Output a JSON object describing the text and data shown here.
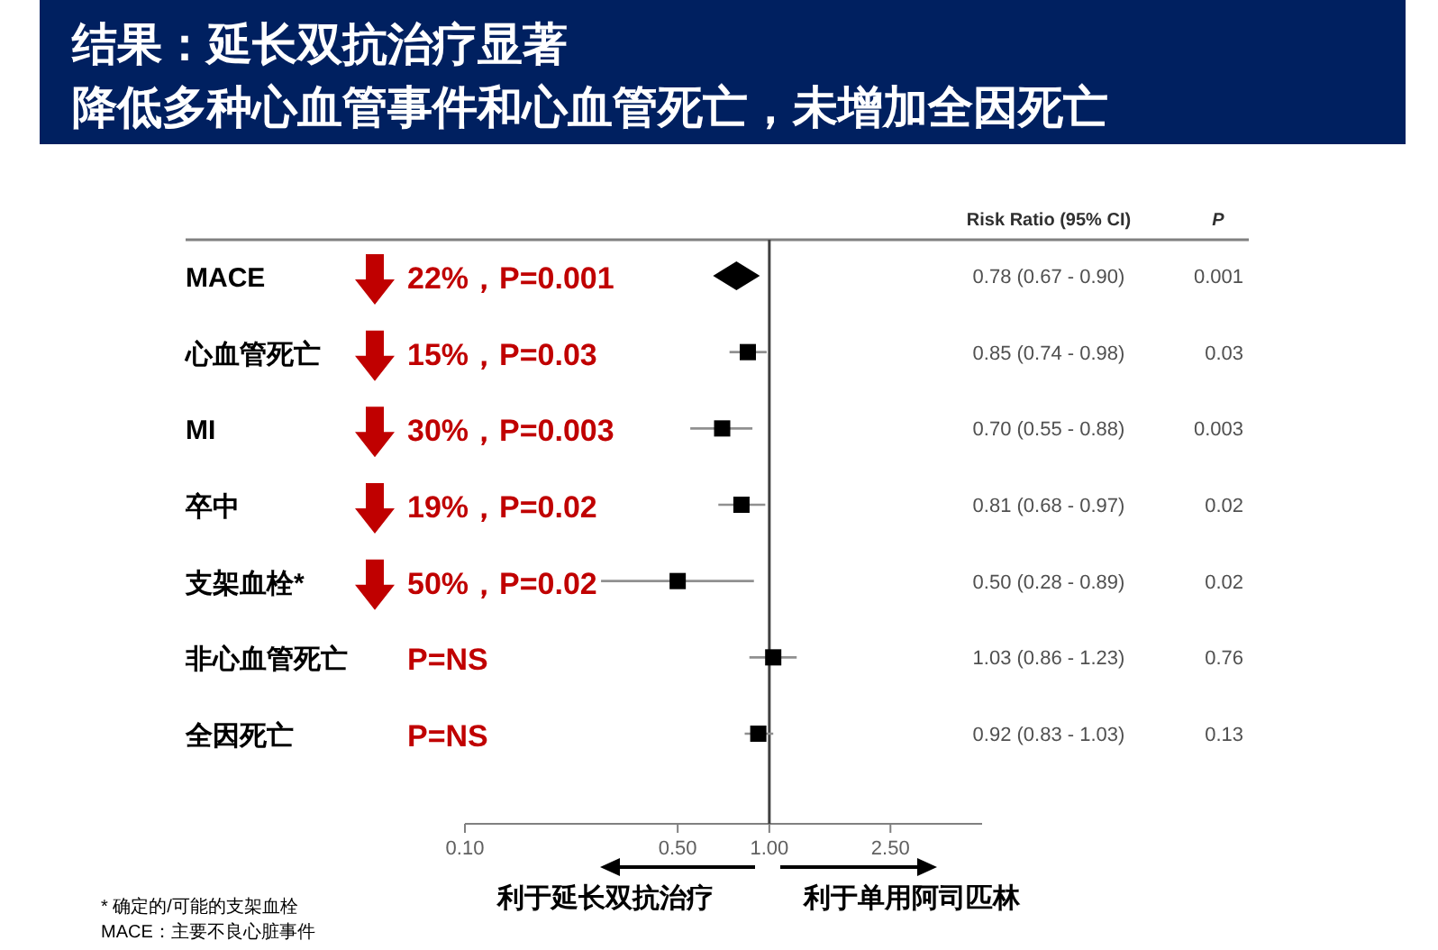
{
  "chart_data": {
    "type": "scatter",
    "orientation": "horizontal",
    "title": "结果：延长双抗治疗显著",
    "subtitle": "降低多种心血管事件和心血管死亡，未增加全因死亡",
    "categories": [
      "MACE",
      "心血管死亡",
      "MI",
      "卒中",
      "支架血栓*",
      "非心血管死亡",
      "全因死亡"
    ],
    "series": [
      {
        "color": "#000000",
        "marker": "diamond",
        "values": [
          0.78,
          null,
          null,
          null,
          null,
          null,
          null
        ],
        "errors": [
          [
            0.67,
            0.9
          ],
          null,
          null,
          null,
          null,
          null,
          null
        ]
      },
      {
        "color": "#000000",
        "marker": "square",
        "values": [
          null,
          0.85,
          0.7,
          0.81,
          0.5,
          1.03,
          0.92
        ],
        "errors": [
          null,
          [
            0.74,
            0.98
          ],
          [
            0.55,
            0.88
          ],
          [
            0.68,
            0.97
          ],
          [
            0.28,
            0.89
          ],
          [
            0.86,
            1.23
          ],
          [
            0.83,
            1.03
          ]
        ]
      }
    ],
    "log": "x",
    "xlim": [
      0.1,
      5
    ],
    "xticks": [
      {
        "value": 0.1,
        "label": "0.10"
      },
      {
        "value": 0.5,
        "label": "0.50"
      },
      {
        "value": 1,
        "label": "1.00"
      },
      {
        "value": 2.5,
        "label": "2.50"
      }
    ],
    "ref_lines": [
      {
        "axis": "x",
        "value": 1,
        "color": "#404040"
      }
    ],
    "grid": false,
    "annotations": [
      "22%，P=0.001",
      "15%，P=0.03",
      "30%，P=0.003",
      "19%，P=0.02",
      "50%，P=0.02",
      "P=NS",
      "P=NS",
      "0.001",
      "0.03",
      "0.003",
      "0.02",
      "0.02",
      "0.76",
      "0.13",
      "0.78 (0.67 - 0.90)",
      "0.85 (0.74 - 0.98)",
      "0.70 (0.55 - 0.88)",
      "0.81 (0.68 - 0.97)",
      "0.50 (0.28 - 0.89)",
      "1.03 (0.86 - 1.23)",
      "0.92 (0.83 - 1.03)",
      "Risk Ratio (95% CI)",
      "P",
      "利于延长双抗治疗",
      "利于单用阿司匹林",
      "* 确定的/可能的支架血栓",
      "MACE：主要不良心脏事件"
    ]
  }
}
